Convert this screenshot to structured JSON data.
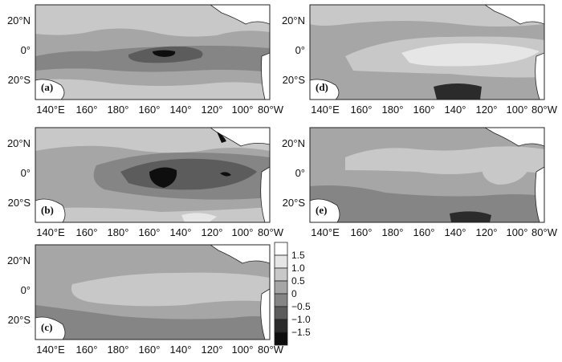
{
  "panels": [
    {
      "id": "a",
      "label": "(a)"
    },
    {
      "id": "b",
      "label": "(b)"
    },
    {
      "id": "c",
      "label": "(c)"
    },
    {
      "id": "d",
      "label": "(d)"
    },
    {
      "id": "e",
      "label": "(e)"
    }
  ],
  "lat_labels": [
    "20°N",
    "0°",
    "20°S"
  ],
  "lon_labels": [
    "140°E",
    "160°",
    "180°",
    "160°",
    "140°",
    "120°",
    "100°",
    "80°W"
  ],
  "colorbar": {
    "labels": [
      "1.5",
      "1.0",
      "0.5",
      "0",
      "−0.5",
      "−1.0",
      "−1.5"
    ],
    "colors": [
      "#ffffff",
      "#e6e6e6",
      "#c8c8c8",
      "#a6a6a6",
      "#858585",
      "#5c5c5c",
      "#2b2b2b",
      "#0e0e0e"
    ]
  }
}
